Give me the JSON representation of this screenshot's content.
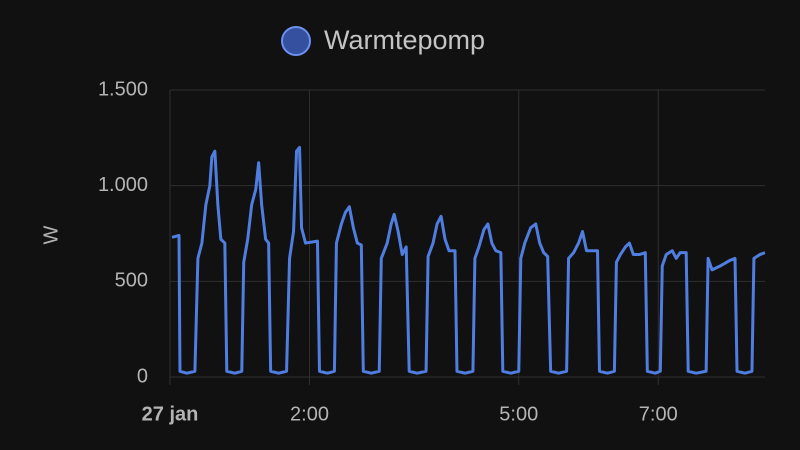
{
  "chart_data": {
    "type": "line",
    "y_label": "W",
    "x": [
      0.029,
      0.129,
      0.143,
      0.243,
      0.357,
      0.4,
      0.457,
      0.514,
      0.571,
      0.6,
      0.643,
      0.686,
      0.729,
      0.786,
      0.814,
      0.929,
      1.029,
      1.057,
      1.114,
      1.171,
      1.229,
      1.271,
      1.314,
      1.371,
      1.414,
      1.443,
      1.557,
      1.671,
      1.714,
      1.771,
      1.814,
      1.857,
      1.886,
      1.943,
      2.114,
      2.143,
      2.257,
      2.357,
      2.386,
      2.457,
      2.514,
      2.571,
      2.629,
      2.686,
      2.743,
      2.771,
      2.886,
      3,
      3.029,
      3.114,
      3.171,
      3.214,
      3.271,
      3.329,
      3.386,
      3.429,
      3.543,
      3.671,
      3.7,
      3.771,
      3.829,
      3.886,
      3.943,
      4,
      4.086,
      4.114,
      4.229,
      4.343,
      4.371,
      4.429,
      4.5,
      4.557,
      4.614,
      4.671,
      4.743,
      4.771,
      4.886,
      5,
      5.029,
      5.086,
      5.171,
      5.243,
      5.3,
      5.357,
      5.414,
      5.457,
      5.571,
      5.686,
      5.714,
      5.786,
      5.857,
      5.914,
      5.971,
      6.043,
      6.129,
      6.157,
      6.271,
      6.371,
      6.4,
      6.457,
      6.529,
      6.586,
      6.643,
      6.729,
      6.814,
      6.843,
      6.957,
      7.029,
      7.057,
      7.114,
      7.2,
      7.257,
      7.314,
      7.4,
      7.429,
      7.543,
      7.686,
      7.714,
      7.771,
      7.886,
      8.029,
      8.1,
      8.129,
      8.243,
      8.343,
      8.371,
      8.457,
      8.529
    ],
    "series": [
      {
        "name": "Warmtepomp",
        "color": "#4f7ee0",
        "values": [
          730,
          740,
          30,
          20,
          30,
          620,
          700,
          900,
          1000,
          1150,
          1180,
          900,
          720,
          700,
          30,
          20,
          30,
          600,
          720,
          900,
          980,
          1120,
          900,
          720,
          700,
          30,
          20,
          30,
          620,
          760,
          1180,
          1200,
          780,
          700,
          710,
          30,
          20,
          30,
          700,
          800,
          860,
          890,
          780,
          700,
          690,
          30,
          20,
          30,
          620,
          700,
          800,
          850,
          760,
          640,
          680,
          30,
          20,
          30,
          630,
          700,
          800,
          840,
          720,
          660,
          660,
          30,
          20,
          30,
          620,
          680,
          770,
          800,
          700,
          660,
          650,
          30,
          20,
          30,
          620,
          700,
          780,
          800,
          700,
          650,
          630,
          30,
          20,
          30,
          620,
          650,
          700,
          760,
          660,
          660,
          660,
          30,
          20,
          30,
          600,
          640,
          680,
          700,
          640,
          640,
          650,
          30,
          20,
          30,
          580,
          640,
          660,
          620,
          650,
          650,
          30,
          20,
          30,
          620,
          560,
          580,
          610,
          620,
          30,
          20,
          30,
          620,
          640,
          650
        ]
      }
    ],
    "xlim": [
      0,
      8.53
    ],
    "xticks": [
      {
        "value": 0,
        "label": "27 jan"
      },
      {
        "value": 2,
        "label": "2:00"
      },
      {
        "value": 5,
        "label": "5:00"
      },
      {
        "value": 7,
        "label": "7:00"
      }
    ],
    "ylim": [
      0,
      1500
    ],
    "yticks": [
      0,
      500,
      {
        "value": 1000,
        "label": "1.000"
      },
      {
        "value": 1500,
        "label": "1.500"
      }
    ],
    "grid": true
  }
}
